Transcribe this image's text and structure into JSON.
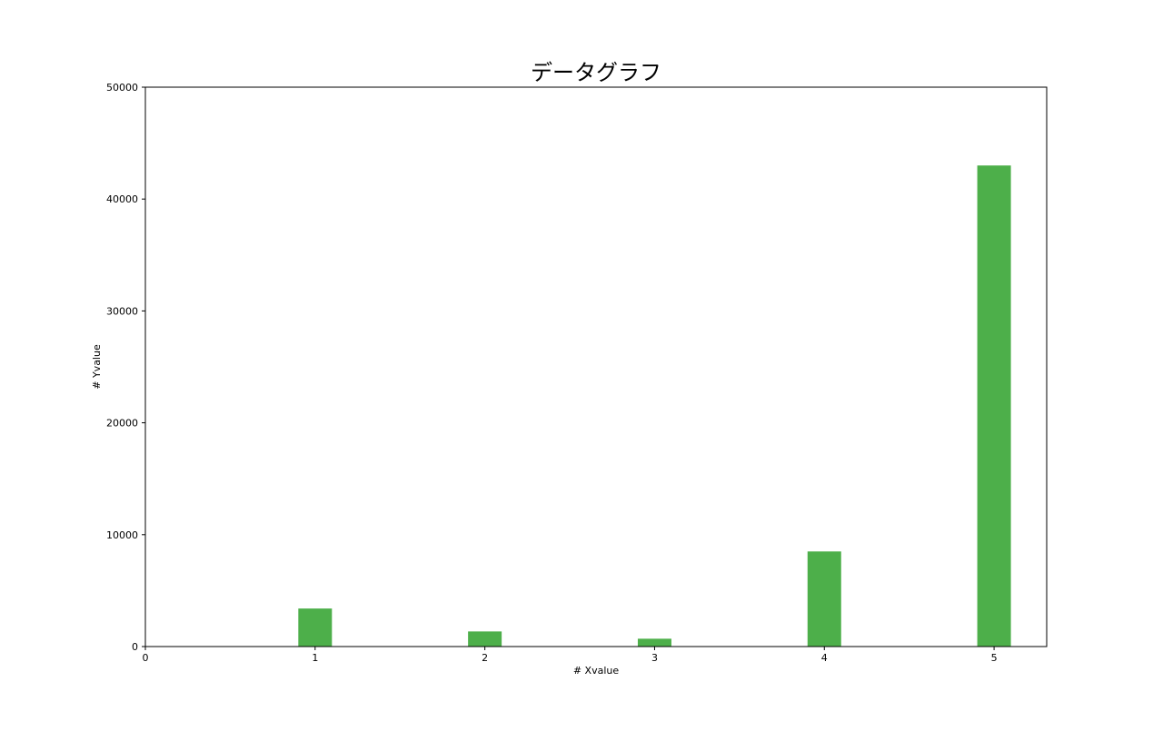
{
  "chart_data": {
    "type": "bar",
    "title": "データグラフ",
    "xlabel": "# Xvalue",
    "ylabel": "# Yvalue",
    "categories": [
      1,
      2,
      3,
      4,
      5
    ],
    "values": [
      3400,
      1350,
      700,
      8500,
      43000
    ],
    "xlim": [
      0,
      5.31
    ],
    "ylim": [
      0,
      50000
    ],
    "xticks": [
      "0",
      "1",
      "2",
      "3",
      "4",
      "5"
    ],
    "yticks": [
      "0",
      "10000",
      "20000",
      "30000",
      "40000",
      "50000"
    ],
    "bar_color": "#4daf4a",
    "grid": false,
    "legend": "none"
  }
}
